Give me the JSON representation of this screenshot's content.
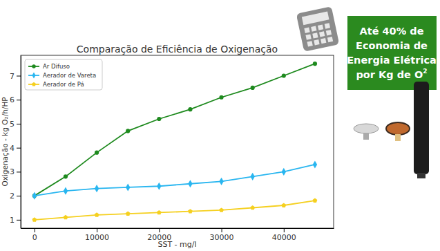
{
  "chart_data": {
    "type": "line",
    "title": "Comparação de Eficiência de Oxigenação",
    "x_label": "SST - mg/l",
    "y_label": "Oxigenação - kg O₂/h/HP",
    "x": [
      0,
      5000,
      10000,
      15000,
      20000,
      25000,
      30000,
      35000,
      40000,
      45000
    ],
    "series": [
      {
        "name": "Ar Difuso",
        "color": "#1e8a1e",
        "marker": "circle",
        "values": [
          2.0,
          2.8,
          3.8,
          4.7,
          5.2,
          5.6,
          6.1,
          6.5,
          7.0,
          7.5
        ]
      },
      {
        "name": "Aerador de Vareta",
        "color": "#29b6f0",
        "marker": "diamond",
        "values": [
          2.0,
          2.2,
          2.3,
          2.35,
          2.4,
          2.5,
          2.6,
          2.8,
          3.0,
          3.3
        ]
      },
      {
        "name": "Aerador de Pá",
        "color": "#f5d020",
        "marker": "pentagon",
        "values": [
          1.0,
          1.1,
          1.2,
          1.25,
          1.3,
          1.35,
          1.4,
          1.5,
          1.6,
          1.8
        ]
      }
    ],
    "xlim": [
      -2200,
      48000
    ],
    "ylim": [
      0.65,
      7.85
    ],
    "xticks": [
      0,
      10000,
      20000,
      30000,
      40000
    ],
    "yticks": [
      1,
      2,
      3,
      4,
      5,
      6,
      7
    ],
    "grid": false,
    "legend": "upper left",
    "annotation": {
      "lines": [
        "Até 40% de",
        "Economia de",
        "Energia Elétrica",
        "por Kg de O"
      ],
      "superscript": "2"
    }
  }
}
